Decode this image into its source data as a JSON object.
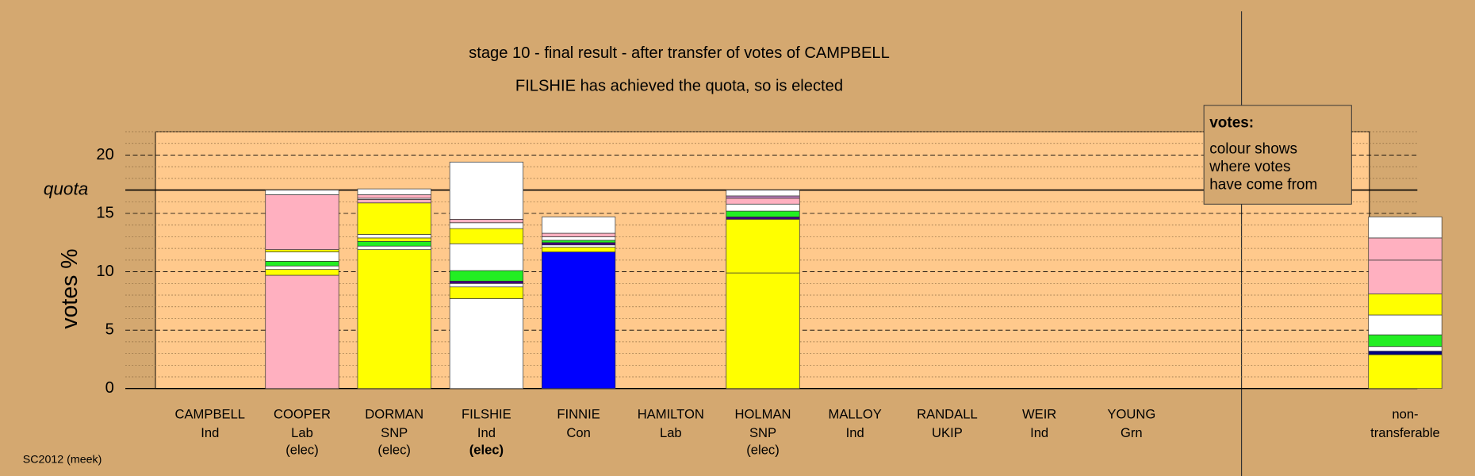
{
  "chart_data": {
    "type": "stacked_bar",
    "title": "stage 10 - final result - after transfer of votes of CAMPBELL",
    "subtitle": "FILSHIE has achieved the quota, so is elected",
    "y_label": "votes %",
    "footer": "SC2012 (meek)",
    "ylim": [
      0,
      22
    ],
    "yticks": [
      0,
      5,
      10,
      15,
      20
    ],
    "minor_yticks": [
      1,
      2,
      3,
      4,
      6,
      7,
      8,
      9,
      11,
      12,
      13,
      14,
      16,
      17,
      18,
      19,
      21,
      22
    ],
    "quota": {
      "label": "quota",
      "value": 17.0
    },
    "legend": {
      "title": "votes:",
      "lines": [
        "colour shows",
        "where votes",
        "have come from"
      ]
    },
    "categories": [
      {
        "name": "CAMPBELL",
        "party": "Ind",
        "segments": []
      },
      {
        "name": "COOPER",
        "party": "Lab",
        "status": "(elec)",
        "segments": [
          {
            "color": "#ffb0c0",
            "value": 9.7
          },
          {
            "color": "#ffff00",
            "value": 0.5
          },
          {
            "color": "#ffffff",
            "value": 0.3
          },
          {
            "color": "#22ee22",
            "value": 0.4
          },
          {
            "color": "#ffffff",
            "value": 0.8
          },
          {
            "color": "#ffff00",
            "value": 0.2
          },
          {
            "color": "#ffb0c0",
            "value": 4.7
          },
          {
            "color": "#ffffff",
            "value": 0.4
          }
        ]
      },
      {
        "name": "DORMAN",
        "party": "SNP",
        "status": "(elec)",
        "segments": [
          {
            "color": "#ffff00",
            "value": 11.9
          },
          {
            "color": "#ffffff",
            "value": 0.3
          },
          {
            "color": "#22ee22",
            "value": 0.4
          },
          {
            "color": "#ffff00",
            "value": 0.3
          },
          {
            "color": "#ffffff",
            "value": 0.3
          },
          {
            "color": "#ffff00",
            "value": 2.7
          },
          {
            "color": "#ffb0c0",
            "value": 0.3
          },
          {
            "color": "#ffffff",
            "value": 0.1
          },
          {
            "color": "#ffb0c0",
            "value": 0.3
          },
          {
            "color": "#ffffff",
            "value": 0.5
          }
        ]
      },
      {
        "name": "FILSHIE",
        "party": "Ind",
        "status": "(elec)",
        "status_bold": true,
        "segments": [
          {
            "color": "#ffffff",
            "value": 7.7
          },
          {
            "color": "#ffff00",
            "value": 1.0
          },
          {
            "color": "#ffffff",
            "value": 0.3
          },
          {
            "color": "#400080",
            "value": 0.2
          },
          {
            "color": "#22ee22",
            "value": 0.9
          },
          {
            "color": "#ffffff",
            "value": 2.3
          },
          {
            "color": "#ffff00",
            "value": 1.3
          },
          {
            "color": "#ffffff",
            "value": 0.5
          },
          {
            "color": "#ffb0c0",
            "value": 0.3
          },
          {
            "color": "#ffffff",
            "value": 4.9
          }
        ]
      },
      {
        "name": "FINNIE",
        "party": "Con",
        "segments": [
          {
            "color": "#0000ff",
            "value": 11.7
          },
          {
            "color": "#ffff00",
            "value": 0.4
          },
          {
            "color": "#ffffff",
            "value": 0.2
          },
          {
            "color": "#400080",
            "value": 0.2
          },
          {
            "color": "#22ee22",
            "value": 0.2
          },
          {
            "color": "#ffffff",
            "value": 0.3
          },
          {
            "color": "#ffb0c0",
            "value": 0.3
          },
          {
            "color": "#ffffff",
            "value": 1.4
          }
        ]
      },
      {
        "name": "HAMILTON",
        "party": "Lab",
        "segments": []
      },
      {
        "name": "HOLMAN",
        "party": "SNP",
        "status": "(elec)",
        "segments": [
          {
            "color": "#ffff00",
            "value": 9.9
          },
          {
            "color": "#ffff00",
            "value": 4.6
          },
          {
            "color": "#400080",
            "value": 0.2
          },
          {
            "color": "#22ee22",
            "value": 0.5
          },
          {
            "color": "#ffffff",
            "value": 0.6
          },
          {
            "color": "#ffb0c0",
            "value": 0.5
          },
          {
            "color": "#c080c0",
            "value": 0.2
          },
          {
            "color": "#ffffff",
            "value": 0.5
          }
        ]
      },
      {
        "name": "MALLOY",
        "party": "Ind",
        "segments": []
      },
      {
        "name": "RANDALL",
        "party": "UKIP",
        "segments": []
      },
      {
        "name": "WEIR",
        "party": "Ind",
        "segments": []
      },
      {
        "name": "YOUNG",
        "party": "Grn",
        "segments": []
      },
      {
        "name": "non-",
        "party": "transferable",
        "segments": [
          {
            "color": "#ffff00",
            "value": 2.9
          },
          {
            "color": "#000080",
            "value": 0.3
          },
          {
            "color": "#ffffff",
            "value": 0.4
          },
          {
            "color": "#22ee22",
            "value": 1.0
          },
          {
            "color": "#ffffff",
            "value": 1.7
          },
          {
            "color": "#ffff00",
            "value": 1.8
          },
          {
            "color": "#ffb0c0",
            "value": 2.9
          },
          {
            "color": "#ffb0c0",
            "value": 1.9
          },
          {
            "color": "#ffffff",
            "value": 1.8
          }
        ]
      }
    ]
  }
}
